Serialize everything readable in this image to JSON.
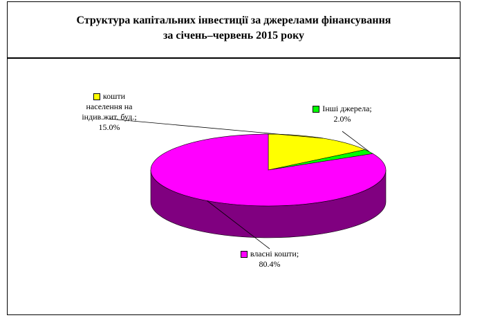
{
  "chart_data": {
    "type": "pie3d",
    "title": [
      "Структура капітальних інвестиції за джерелами фінансування",
      "за січень–червень 2015 року"
    ],
    "categories": [
      "кошти населення на індив.жит. буд.;",
      "Інші джерела;",
      "власні кошти;"
    ],
    "values": [
      15.0,
      2.0,
      80.4
    ],
    "value_labels": [
      "15.0%",
      "2.0%",
      "80.4%"
    ],
    "colors": [
      "#ffff00",
      "#00ff00",
      "#ff00ff"
    ],
    "side_colors": [
      "#808000",
      "#008000",
      "#800080"
    ]
  }
}
